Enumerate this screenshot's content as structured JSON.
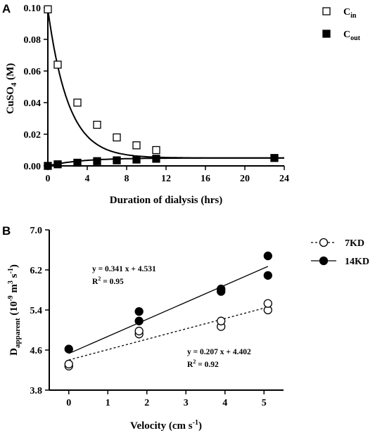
{
  "chart_data": [
    {
      "panel_label": "A",
      "type": "scatter",
      "xlabel": "Duration of dialysis (hrs)",
      "ylabel_main": "CuSO",
      "ylabel_sub": "4",
      "ylabel_tail": " (M)",
      "xlim": [
        0,
        24
      ],
      "ylim": [
        0,
        0.1
      ],
      "xticks": [
        "0",
        "4",
        "8",
        "12",
        "16",
        "20",
        "24"
      ],
      "yticks": [
        "0.00",
        "0.02",
        "0.04",
        "0.06",
        "0.08",
        "0.10"
      ],
      "legend_position": "top-right",
      "series": [
        {
          "name": "C",
          "name_sub": "in",
          "marker": "open-square",
          "x": [
            0,
            1,
            3,
            5,
            7,
            9,
            11
          ],
          "y": [
            0.099,
            0.064,
            0.04,
            0.026,
            0.018,
            0.013,
            0.01
          ],
          "fit": "exponential-decay"
        },
        {
          "name": "C",
          "name_sub": "out",
          "marker": "filled-square",
          "x": [
            0,
            1,
            3,
            5,
            7,
            9,
            11,
            23
          ],
          "y": [
            0.0,
            0.001,
            0.002,
            0.003,
            0.0035,
            0.004,
            0.0045,
            0.005
          ],
          "fit": "exponential-rise"
        }
      ],
      "fit_plateau": 0.005
    },
    {
      "panel_label": "B",
      "type": "scatter",
      "xlabel": "Velocity (cm s",
      "xlabel_sup": "-1",
      "xlabel_tail": ")",
      "ylabel_main": "D",
      "ylabel_sub": "apparent",
      "ylabel_mid1": " (10",
      "ylabel_sup1": "-9",
      "ylabel_mid2": " m",
      "ylabel_sup2": "3",
      "ylabel_mid3": " s",
      "ylabel_sup3": "-1",
      "ylabel_tail": ")",
      "xlim": [
        -0.5,
        5.5
      ],
      "ylim": [
        3.8,
        7.0
      ],
      "xticks": [
        "0",
        "1",
        "2",
        "3",
        "4",
        "5"
      ],
      "yticks": [
        "3.8",
        "4.6",
        "5.4",
        "6.2",
        "7.0"
      ],
      "legend_position": "top-right",
      "series": [
        {
          "name": "7KD",
          "marker": "open-circle",
          "line": "dashed",
          "x": [
            0,
            0,
            1.8,
            1.8,
            3.9,
            3.9,
            5.1,
            5.1
          ],
          "y": [
            4.28,
            4.32,
            4.92,
            4.98,
            5.07,
            5.18,
            5.4,
            5.53
          ],
          "fit": {
            "slope": 0.207,
            "intercept": 4.402
          }
        },
        {
          "name": "14KD",
          "marker": "filled-circle",
          "line": "solid",
          "x": [
            0,
            1.8,
            1.8,
            3.9,
            3.9,
            5.1,
            5.1
          ],
          "y": [
            4.62,
            5.18,
            5.37,
            5.77,
            5.82,
            6.09,
            6.48
          ],
          "fit": {
            "slope": 0.341,
            "intercept": 4.531
          }
        }
      ],
      "annotations": [
        {
          "eq": "y = 0.341 x + 4.531",
          "r2_lead": "R",
          "r2_sup": "2",
          "r2_tail": " = 0.95"
        },
        {
          "eq": "y = 0.207 x + 4.402",
          "r2_lead": "R",
          "r2_sup": "2",
          "r2_tail": " = 0.92"
        }
      ]
    }
  ]
}
